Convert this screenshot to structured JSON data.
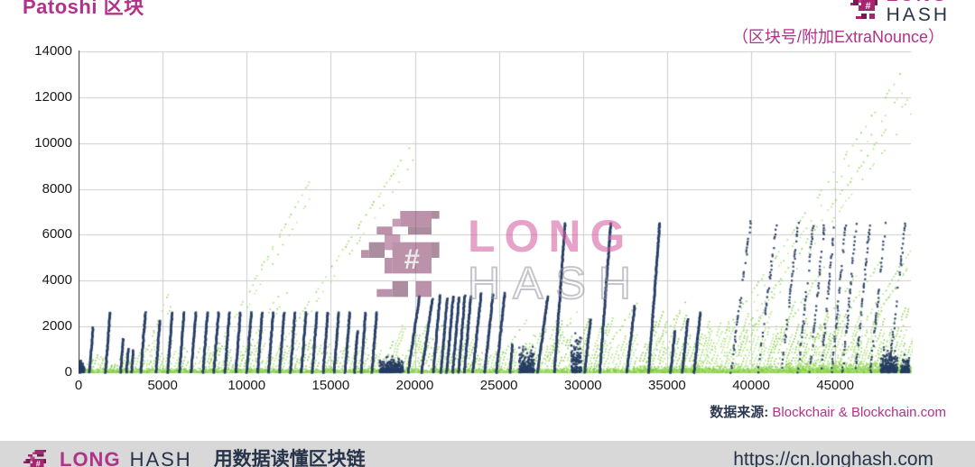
{
  "header": {
    "title": "Patoshi 区块",
    "subtitle": "（区块号/附加ExtraNounce）"
  },
  "brand": {
    "line1": "LONG",
    "line2": "HASH",
    "hash_glyph": "#"
  },
  "source_note": {
    "label": "数据来源:",
    "value": "Blockchair & Blockchain.com"
  },
  "footer": {
    "tagline": "用数据读懂区块链",
    "url": "https://cn.longhash.com"
  },
  "colors": {
    "brand_magenta": "#b23189",
    "dark_navy_series": "#253c63",
    "green_series": "#8dd14e",
    "green_variants": [
      "#7cc840",
      "#8dd14e",
      "#9edc63",
      "#aee27b"
    ],
    "gridline": "#cccccc",
    "axis_line": "#3a3a3a",
    "tick_text": "#1a1a1a",
    "footer_bg": "#d8d8d8",
    "dark_text": "#273349"
  },
  "chart_data": {
    "type": "scatter",
    "title": "Patoshi 区块",
    "xlabel": "区块号",
    "ylabel": "附加ExtraNounce",
    "xlim": [
      0,
      49500
    ],
    "ylim": [
      0,
      14000
    ],
    "x_ticks": [
      0,
      5000,
      10000,
      15000,
      20000,
      25000,
      30000,
      35000,
      40000,
      45000
    ],
    "y_ticks": [
      0,
      2000,
      4000,
      6000,
      8000,
      10000,
      12000,
      14000
    ],
    "grid": true,
    "legend": "none",
    "series": [
      {
        "name": "dark_blue_sawtooth_lines",
        "color": "#253c63",
        "note": "steep ascending extranonce runs, each [start_block, peak_extranonce, block_span], rising from 0",
        "solid_segments": [
          [
            80,
            500,
            60
          ],
          [
            650,
            1950,
            210
          ],
          [
            1600,
            2600,
            280
          ],
          [
            2500,
            1450,
            160
          ],
          [
            2850,
            1000,
            110
          ],
          [
            3150,
            950,
            105
          ],
          [
            3700,
            2600,
            280
          ],
          [
            4600,
            2250,
            240
          ],
          [
            5300,
            2600,
            275
          ],
          [
            6000,
            2600,
            275
          ],
          [
            6700,
            2600,
            275
          ],
          [
            7400,
            2600,
            275
          ],
          [
            8050,
            2600,
            275
          ],
          [
            8700,
            2600,
            275
          ],
          [
            9350,
            2600,
            275
          ],
          [
            10000,
            2600,
            275
          ],
          [
            10650,
            2600,
            275
          ],
          [
            11300,
            2600,
            275
          ],
          [
            11950,
            2600,
            275
          ],
          [
            12600,
            2600,
            275
          ],
          [
            13250,
            2600,
            275
          ],
          [
            13900,
            2600,
            275
          ],
          [
            14550,
            2600,
            275
          ],
          [
            15200,
            2600,
            275
          ],
          [
            15850,
            2600,
            275
          ],
          [
            16400,
            1800,
            190
          ],
          [
            16800,
            2600,
            275
          ],
          [
            17450,
            2600,
            275
          ],
          [
            19600,
            3300,
            680
          ],
          [
            20400,
            3200,
            650
          ],
          [
            21100,
            3350,
            400
          ],
          [
            21550,
            3200,
            380
          ],
          [
            21900,
            3300,
            380
          ],
          [
            22250,
            3250,
            380
          ],
          [
            22600,
            3350,
            380
          ],
          [
            22950,
            3300,
            380
          ],
          [
            23450,
            3450,
            500
          ],
          [
            24150,
            3400,
            500
          ],
          [
            24850,
            3450,
            500
          ],
          [
            25650,
            1200,
            150
          ],
          [
            27300,
            3300,
            600
          ],
          [
            28300,
            6500,
            640
          ],
          [
            30100,
            2300,
            350
          ],
          [
            31000,
            6500,
            650
          ],
          [
            32600,
            2900,
            480
          ],
          [
            33900,
            6500,
            660
          ],
          [
            35200,
            1800,
            280
          ],
          [
            35900,
            2300,
            330
          ],
          [
            36600,
            2600,
            380
          ]
        ],
        "dotted_segments": [
          [
            38800,
            6500,
            1150
          ],
          [
            40400,
            6400,
            1100
          ],
          [
            41800,
            6500,
            1000
          ],
          [
            42800,
            6400,
            900
          ],
          [
            43500,
            6400,
            850
          ],
          [
            44150,
            6500,
            800
          ],
          [
            44800,
            6400,
            800
          ],
          [
            45450,
            6500,
            800
          ],
          [
            46200,
            6400,
            850
          ],
          [
            47100,
            6500,
            900
          ],
          [
            48200,
            6400,
            950
          ]
        ],
        "low_clusters": [
          [
            0,
            350,
            400
          ],
          [
            17900,
            19300,
            700
          ],
          [
            26200,
            27100,
            1300
          ],
          [
            29300,
            29900,
            1800
          ],
          [
            47700,
            48700,
            1100
          ],
          [
            48900,
            49400,
            800
          ]
        ]
      },
      {
        "name": "green_scatter",
        "color": "#8dd14e",
        "note": "sparse dashed diagonals [start_block, end_block, peak_extranonce] rising from 0",
        "long_diagonals": [
          [
            3600,
            5300,
            3400
          ],
          [
            7500,
            13700,
            8300
          ],
          [
            9200,
            12100,
            3600
          ],
          [
            11000,
            19700,
            9800
          ],
          [
            36800,
            48900,
            13000
          ],
          [
            37800,
            49400,
            12000
          ],
          [
            44800,
            49500,
            5300
          ]
        ],
        "medium_diagonals": [
          [
            19600,
            21900,
            2300
          ],
          [
            24500,
            26800,
            2400
          ],
          [
            27200,
            29600,
            2600
          ],
          [
            30500,
            33200,
            3000
          ],
          [
            33400,
            36200,
            3200
          ],
          [
            38500,
            41800,
            4000
          ],
          [
            40500,
            44300,
            4600
          ],
          [
            42500,
            46200,
            4200
          ],
          [
            43500,
            47600,
            4800
          ],
          [
            45500,
            49400,
            4700
          ]
        ],
        "grass_band": {
          "x_start": 100,
          "x_end": 49400,
          "spacing": 210,
          "height_profile": [
            [
              0,
              3000,
              900
            ],
            [
              3000,
              18000,
              1500
            ],
            [
              18000,
              23000,
              2100
            ],
            [
              23000,
              26000,
              1200
            ],
            [
              26000,
              33000,
              2400
            ],
            [
              33000,
              41000,
              2800
            ],
            [
              41000,
              49500,
              3200
            ]
          ]
        },
        "base_strip": {
          "y_max": 200,
          "points": 3600,
          "boosts": [
            [
              42000,
              49500,
              480,
              900
            ],
            [
              33000,
              42000,
              350,
              600
            ]
          ]
        }
      }
    ]
  }
}
